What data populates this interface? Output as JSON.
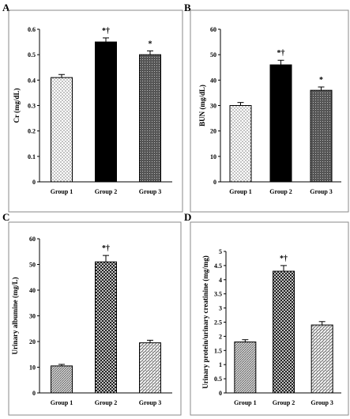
{
  "chart_data": [
    {
      "panel": "A",
      "type": "bar",
      "categories": [
        "Group 1",
        "Group 2",
        "Group 3"
      ],
      "values": [
        0.41,
        0.55,
        0.5
      ],
      "errors": [
        0.012,
        0.016,
        0.015
      ],
      "annotations": [
        "",
        "*†",
        "*"
      ],
      "patterns": [
        "dots",
        "solid",
        "grid"
      ],
      "ylabel": "Cr (mg/dL)",
      "ylim": [
        0,
        0.6
      ],
      "yticks": [
        "0",
        "0.1",
        "0.2",
        "0.3",
        "0.4",
        "0.5",
        "0.6"
      ]
    },
    {
      "panel": "B",
      "type": "bar",
      "categories": [
        "Group 1",
        "Group 2",
        "Group 3"
      ],
      "values": [
        30,
        46,
        36
      ],
      "errors": [
        1.2,
        1.8,
        1.3
      ],
      "annotations": [
        "",
        "*†",
        "*"
      ],
      "patterns": [
        "dots",
        "solid",
        "grid"
      ],
      "ylabel": "BUN (mg/dL)",
      "ylim": [
        0,
        60
      ],
      "yticks": [
        "0",
        "10",
        "20",
        "30",
        "40",
        "50",
        "60"
      ]
    },
    {
      "panel": "C",
      "type": "bar",
      "categories": [
        "Group 1",
        "Group 2",
        "Group 3"
      ],
      "values": [
        10.5,
        51,
        19.5
      ],
      "errors": [
        0.6,
        2.5,
        1.0
      ],
      "annotations": [
        "",
        "*†",
        ""
      ],
      "patterns": [
        "hatch",
        "cross",
        "weave"
      ],
      "ylabel": "Urinary albumine (mg/L)",
      "ylim": [
        0,
        60
      ],
      "yticks": [
        "0",
        "10",
        "20",
        "30",
        "40",
        "50",
        "60"
      ]
    },
    {
      "panel": "D",
      "type": "bar",
      "categories": [
        "Group 1",
        "Group 2",
        "Group 3"
      ],
      "values": [
        1.8,
        4.3,
        2.4
      ],
      "errors": [
        0.08,
        0.2,
        0.12
      ],
      "annotations": [
        "",
        "*†",
        ""
      ],
      "patterns": [
        "hatch",
        "cross",
        "weave"
      ],
      "ylabel": "Urinary protein/urinary creatinine (mg/mg)",
      "ylim": [
        0,
        5
      ],
      "yticks": [
        "0",
        "0.5",
        "1",
        "1.5",
        "2",
        "2.5",
        "3",
        "3.5",
        "4",
        "4.5",
        "5"
      ]
    }
  ]
}
